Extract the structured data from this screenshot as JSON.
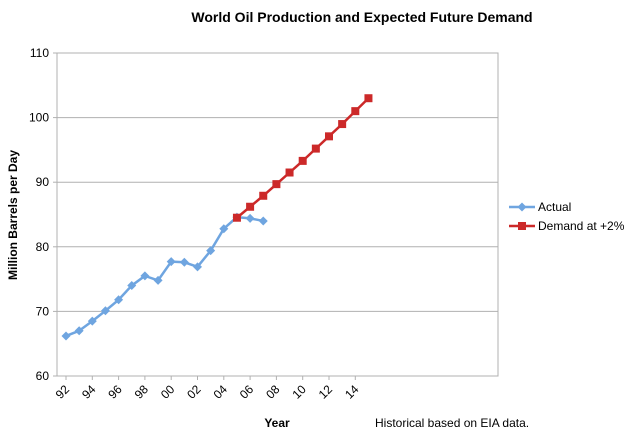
{
  "chart_data": {
    "type": "line",
    "title": "World Oil Production and Expected Future Demand",
    "xlabel": "Year",
    "ylabel": "Million Barrels per Day",
    "note": "Historical based on EIA data.",
    "x_tick_labels": [
      "92",
      "94",
      "96",
      "98",
      "00",
      "02",
      "04",
      "06",
      "08",
      "10",
      "12",
      "14"
    ],
    "ylim": [
      60,
      110
    ],
    "y_ticks": [
      60,
      70,
      80,
      90,
      100,
      110
    ],
    "grid": "horizontal",
    "legend_position": "right",
    "series": [
      {
        "name": "Actual",
        "color": "#6fa5e0",
        "marker": "diamond",
        "points": [
          [
            1992,
            66.2
          ],
          [
            1993,
            67.0
          ],
          [
            1994,
            68.5
          ],
          [
            1995,
            70.1
          ],
          [
            1996,
            71.8
          ],
          [
            1997,
            74.0
          ],
          [
            1998,
            75.5
          ],
          [
            1999,
            74.8
          ],
          [
            2000,
            77.7
          ],
          [
            2001,
            77.6
          ],
          [
            2002,
            76.9
          ],
          [
            2003,
            79.4
          ],
          [
            2004,
            82.8
          ],
          [
            2005,
            84.6
          ],
          [
            2006,
            84.4
          ],
          [
            2007,
            84.0
          ]
        ]
      },
      {
        "name": "Demand at +2%",
        "color": "#cc2929",
        "marker": "square",
        "points": [
          [
            2005,
            84.5
          ],
          [
            2006,
            86.2
          ],
          [
            2007,
            87.9
          ],
          [
            2008,
            89.7
          ],
          [
            2009,
            91.5
          ],
          [
            2010,
            93.3
          ],
          [
            2011,
            95.2
          ],
          [
            2012,
            97.1
          ],
          [
            2013,
            99.0
          ],
          [
            2014,
            101.0
          ],
          [
            2015,
            103.0
          ]
        ]
      }
    ]
  }
}
